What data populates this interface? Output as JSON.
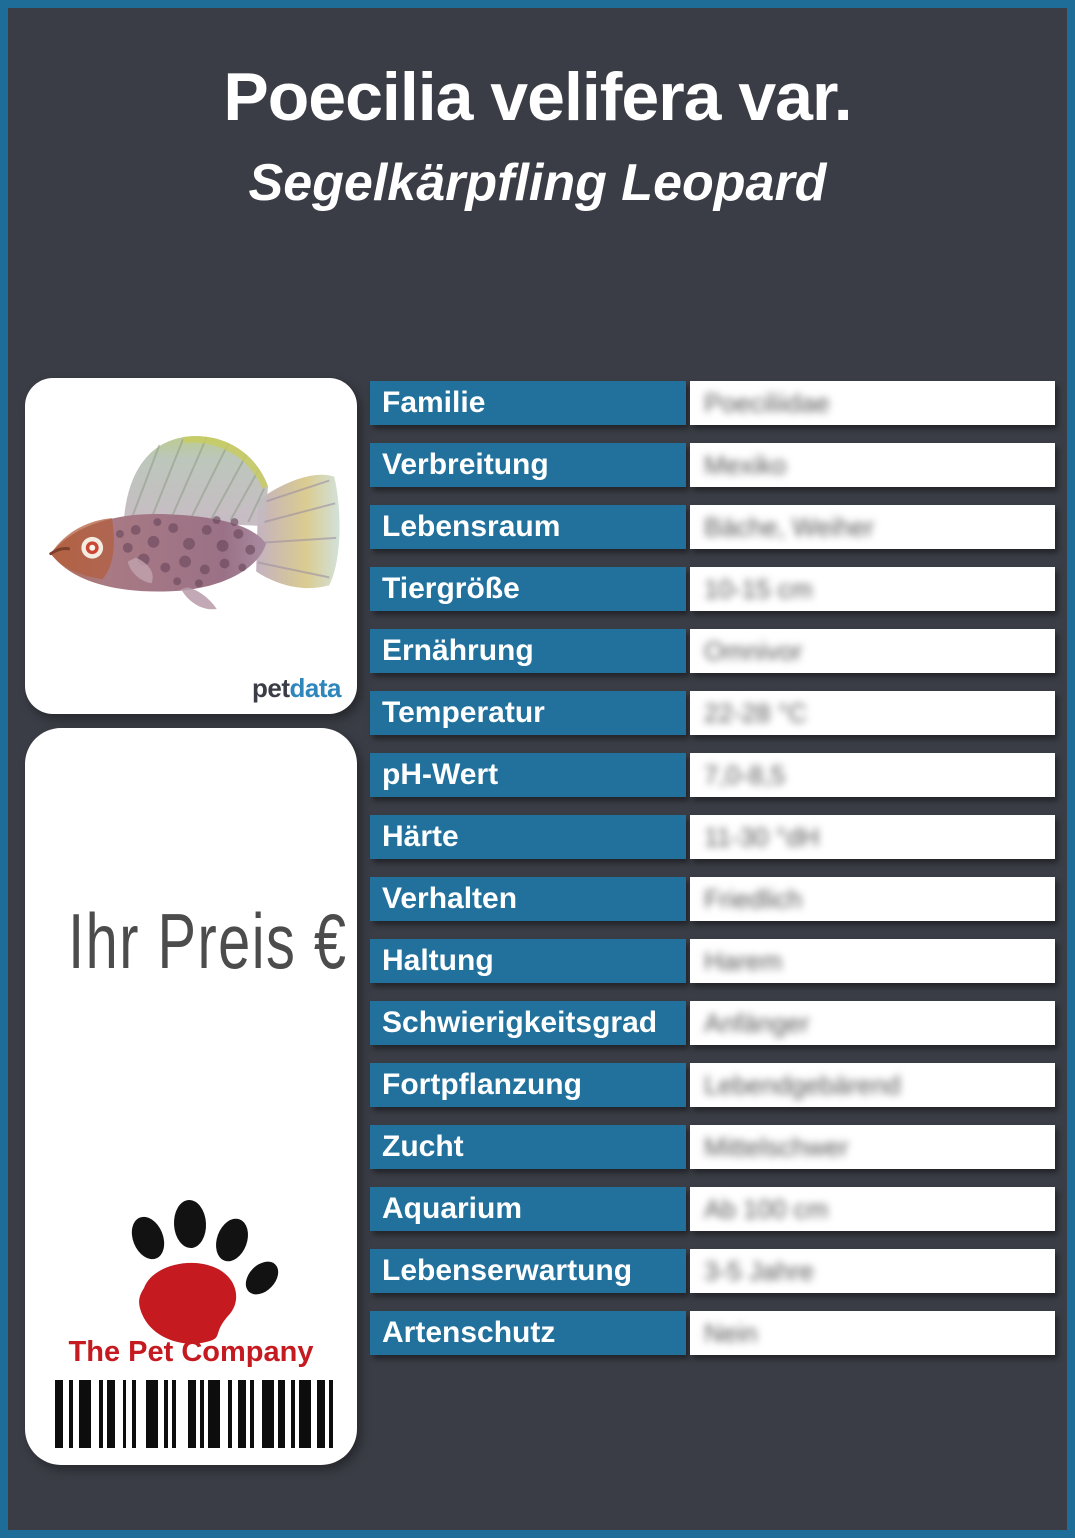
{
  "header": {
    "title": "Poecilia velifera var.",
    "subtitle": "Segelkärpfling Leopard"
  },
  "logo": {
    "pet": "pet",
    "data": "data"
  },
  "price": {
    "label": "Ihr Preis €"
  },
  "company": {
    "name": "The Pet Company"
  },
  "colors": {
    "border": "#1d6d98",
    "background": "#3a3d45",
    "label_cell": "#21719c",
    "logo_red": "#c41a20",
    "logo_blue": "#2e86bd"
  },
  "table": {
    "rows": [
      {
        "label": "Familie",
        "value": "Poeciliidae"
      },
      {
        "label": "Verbreitung",
        "value": "Mexiko"
      },
      {
        "label": "Lebensraum",
        "value": "Bäche, Weiher"
      },
      {
        "label": "Tiergröße",
        "value": "10-15 cm"
      },
      {
        "label": "Ernährung",
        "value": "Omnivor"
      },
      {
        "label": "Temperatur",
        "value": "22-28 °C"
      },
      {
        "label": "pH-Wert",
        "value": "7,0-8,5"
      },
      {
        "label": "Härte",
        "value": "11-30 °dH"
      },
      {
        "label": "Verhalten",
        "value": "Friedlich"
      },
      {
        "label": "Haltung",
        "value": "Harem"
      },
      {
        "label": "Schwierigkeitsgrad",
        "value": "Anfänger"
      },
      {
        "label": "Fortpflanzung",
        "value": "Lebendgebärend"
      },
      {
        "label": "Zucht",
        "value": "Mittelschwer"
      },
      {
        "label": "Aquarium",
        "value": "Ab 100 cm"
      },
      {
        "label": "Lebenserwartung",
        "value": "3-5 Jahre"
      },
      {
        "label": "Artenschutz",
        "value": "Nein"
      }
    ]
  },
  "barcode": {
    "pattern": [
      [
        8,
        6
      ],
      [
        4,
        6
      ],
      [
        12,
        8
      ],
      [
        4,
        4
      ],
      [
        8,
        8
      ],
      [
        4,
        6
      ],
      [
        4,
        10
      ],
      [
        12,
        6
      ],
      [
        4,
        4
      ],
      [
        4,
        12
      ],
      [
        8,
        4
      ],
      [
        4,
        4
      ],
      [
        12,
        8
      ],
      [
        4,
        6
      ],
      [
        8,
        4
      ],
      [
        4,
        8
      ],
      [
        12,
        4
      ],
      [
        8,
        6
      ],
      [
        4,
        4
      ],
      [
        12,
        6
      ],
      [
        8,
        4
      ],
      [
        4,
        0
      ]
    ]
  }
}
